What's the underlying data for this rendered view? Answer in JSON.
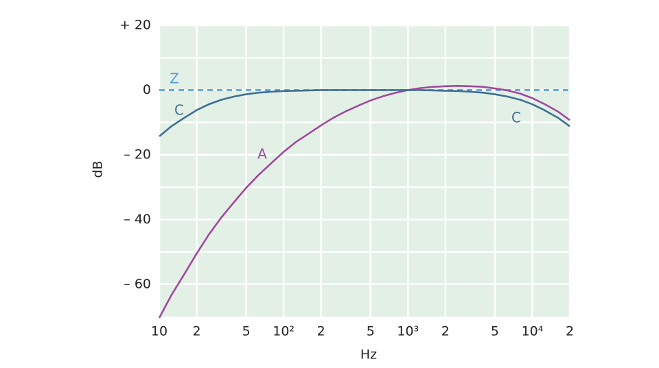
{
  "chart_data": {
    "type": "line",
    "xlabel": "Hz",
    "ylabel": "dB",
    "log_x": true,
    "grid": true,
    "xlim": [
      10,
      20000
    ],
    "ylim": [
      -70,
      20
    ],
    "xticks": [
      10,
      20,
      50,
      {
        "value": 100,
        "label": "10²"
      },
      200,
      500,
      {
        "value": 1000,
        "label": "10³"
      },
      2000,
      5000,
      {
        "value": 10000,
        "label": "10⁴"
      },
      20000
    ],
    "xtick_labels_short": [
      null,
      "2",
      "5",
      null,
      "2",
      "5",
      null,
      "2",
      "5",
      null,
      "2"
    ],
    "yticks": [
      {
        "value": 20,
        "label": "+ 20"
      },
      0,
      {
        "value": -20,
        "label": "– 20"
      },
      {
        "value": -40,
        "label": "– 40"
      },
      {
        "value": -60,
        "label": "– 60"
      }
    ],
    "minor_yticks": [
      10,
      -10,
      -30,
      -50
    ],
    "x": [
      10,
      12.5,
      16,
      20,
      25,
      31.5,
      40,
      50,
      63,
      80,
      100,
      125,
      160,
      200,
      250,
      315,
      400,
      500,
      630,
      800,
      1000,
      1250,
      1600,
      2000,
      2500,
      3150,
      4000,
      5000,
      6300,
      8000,
      10000,
      12500,
      16000,
      20000
    ],
    "series": [
      {
        "name": "Z",
        "color": "#5b9bd5",
        "dashed": true,
        "values": [
          0,
          0,
          0,
          0,
          0,
          0,
          0,
          0,
          0,
          0,
          0,
          0,
          0,
          0,
          0,
          0,
          0,
          0,
          0,
          0,
          0,
          0,
          0,
          0,
          0,
          0,
          0,
          0,
          0,
          0,
          0,
          0,
          0,
          0
        ]
      },
      {
        "name": "A",
        "color": "#a0489e",
        "dashed": false,
        "values": [
          -70.4,
          -63.4,
          -56.7,
          -50.5,
          -44.7,
          -39.4,
          -34.6,
          -30.2,
          -26.2,
          -22.5,
          -19.1,
          -16.1,
          -13.4,
          -10.9,
          -8.6,
          -6.6,
          -4.8,
          -3.2,
          -1.9,
          -0.8,
          0,
          0.6,
          1.0,
          1.2,
          1.3,
          1.2,
          1.0,
          0.5,
          -0.1,
          -1.1,
          -2.5,
          -4.3,
          -6.6,
          -9.3
        ]
      },
      {
        "name": "C",
        "color": "#3f6f94",
        "dashed": false,
        "values": [
          -14.3,
          -11.2,
          -8.5,
          -6.2,
          -4.4,
          -3.0,
          -2.0,
          -1.3,
          -0.8,
          -0.5,
          -0.3,
          -0.2,
          -0.1,
          0,
          0,
          0,
          0,
          0,
          0,
          0,
          0,
          0,
          -0.1,
          -0.2,
          -0.3,
          -0.5,
          -0.8,
          -1.3,
          -2.0,
          -3.0,
          -4.4,
          -6.2,
          -8.5,
          -11.2
        ]
      }
    ]
  }
}
